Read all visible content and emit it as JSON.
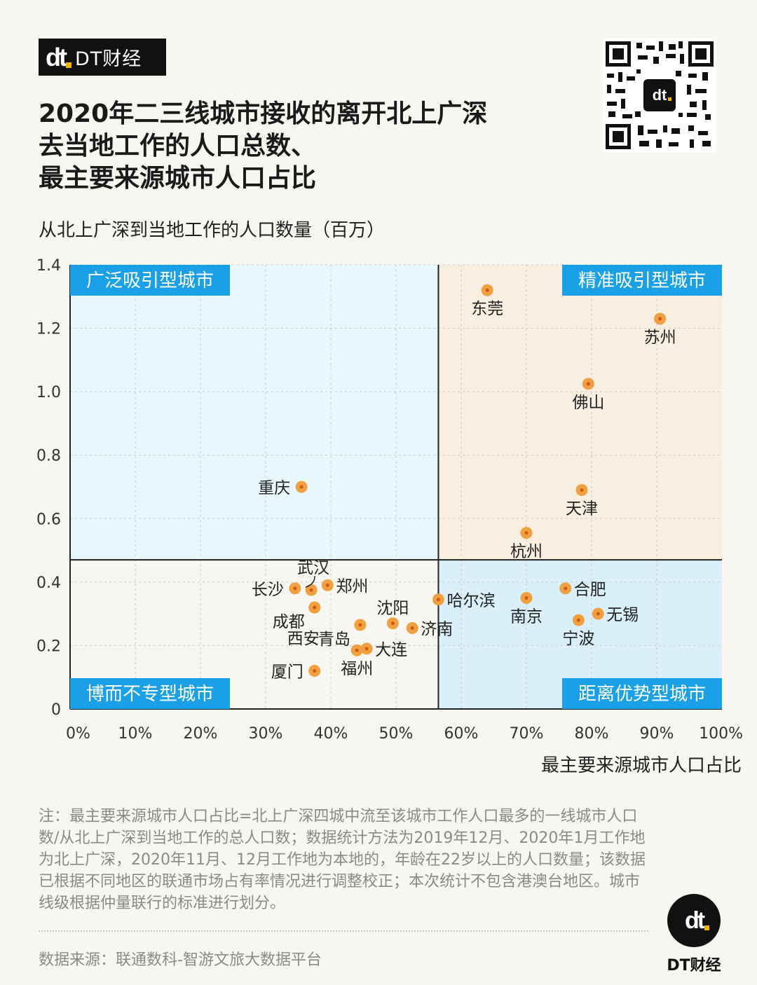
{
  "brand": {
    "name": "DT财经",
    "mark": "dt"
  },
  "title_lines": [
    "2020年二三线城市接收的离开北上广深",
    "去当地工作的人口总数、",
    "最主要来源城市人口占比"
  ],
  "qr_icon": "qr-code-icon",
  "y_axis_label": "从北上广深到当地工作的人口数量（百万）",
  "x_axis_label": "最主要来源城市人口占比",
  "colors": {
    "point_fill": "#f0a040",
    "point_center": "#d05a10",
    "top_left_bg": "#e8f7fb",
    "top_right_bg": "#f8efe0",
    "bottom_left_bg": "#f8f6f0",
    "bottom_right_bg": "#d9f0fa",
    "label_bg": "#1aa0e6",
    "background": "#f8f6f1"
  },
  "chart_data": {
    "type": "scatter",
    "xlim": [
      0,
      100
    ],
    "ylim": [
      0,
      1.4
    ],
    "x_divider": 56.5,
    "y_divider": 0.47,
    "x_ticks": [
      "0%",
      "10%",
      "20%",
      "30%",
      "40%",
      "50%",
      "60%",
      "70%",
      "80%",
      "90%",
      "100%"
    ],
    "y_ticks": [
      "0",
      "0.2",
      "0.4",
      "0.6",
      "0.8",
      "1.0",
      "1.2",
      "1.4"
    ],
    "y_tick_values": [
      0,
      0.2,
      0.4,
      0.6,
      0.8,
      1.0,
      1.2,
      1.4
    ],
    "grid": true,
    "quadrants": {
      "top_left": "广泛吸引型城市",
      "top_right": "精准吸引型城市",
      "bottom_left": "博而不专型城市",
      "bottom_right": "距离优势型城市"
    },
    "points": [
      {
        "city": "东莞",
        "x": 64.0,
        "y": 1.32,
        "label_pos": "below"
      },
      {
        "city": "苏州",
        "x": 90.5,
        "y": 1.23,
        "label_pos": "below"
      },
      {
        "city": "佛山",
        "x": 79.5,
        "y": 1.025,
        "label_pos": "below"
      },
      {
        "city": "重庆",
        "x": 35.5,
        "y": 0.7,
        "label_pos": "left"
      },
      {
        "city": "天津",
        "x": 78.5,
        "y": 0.69,
        "label_pos": "below"
      },
      {
        "city": "杭州",
        "x": 70.0,
        "y": 0.555,
        "label_pos": "below"
      },
      {
        "city": "郑州",
        "x": 39.5,
        "y": 0.39,
        "label_pos": "right"
      },
      {
        "city": "长沙",
        "x": 34.5,
        "y": 0.38,
        "label_pos": "left"
      },
      {
        "city": "武汉",
        "x": 37.0,
        "y": 0.375,
        "label_pos": "above-callout"
      },
      {
        "city": "合肥",
        "x": 76.0,
        "y": 0.38,
        "label_pos": "right"
      },
      {
        "city": "南京",
        "x": 70.0,
        "y": 0.35,
        "label_pos": "below"
      },
      {
        "city": "哈尔滨",
        "x": 56.5,
        "y": 0.345,
        "label_pos": "right"
      },
      {
        "city": "成都",
        "x": 37.5,
        "y": 0.32,
        "label_pos": "left-below"
      },
      {
        "city": "无锡",
        "x": 81.0,
        "y": 0.3,
        "label_pos": "right"
      },
      {
        "city": "宁波",
        "x": 78.0,
        "y": 0.28,
        "label_pos": "below"
      },
      {
        "city": "沈阳",
        "x": 49.5,
        "y": 0.27,
        "label_pos": "above"
      },
      {
        "city": "青岛",
        "x": 44.5,
        "y": 0.265,
        "label_pos": "left-below"
      },
      {
        "city": "济南",
        "x": 52.5,
        "y": 0.255,
        "label_pos": "right"
      },
      {
        "city": "西安",
        "x": 37.5,
        "y": 0.32,
        "label_pos": "below-left"
      },
      {
        "city": "大连",
        "x": 45.5,
        "y": 0.19,
        "label_pos": "right"
      },
      {
        "city": "福州",
        "x": 44.0,
        "y": 0.185,
        "label_pos": "below"
      },
      {
        "city": "厦门",
        "x": 37.5,
        "y": 0.12,
        "label_pos": "left"
      }
    ]
  },
  "note": "注：最主要来源城市人口占比=北上广深四城中流至该城市工作人口最多的一线城市人口数/从北上广深到当地工作的总人口数；数据统计方法为2019年12月、2020年1月工作地为北上广深，2020年11月、12月工作地为本地的，年龄在22岁以上的人口数量；该数据已根据不同地区的联通市场占有率情况进行调整校正；本次统计不包含港澳台地区。城市线级根据仲量联行的标准进行划分。",
  "source": "数据来源：联通数科-智游文旅大数据平台",
  "footer_brand": "DT财经"
}
